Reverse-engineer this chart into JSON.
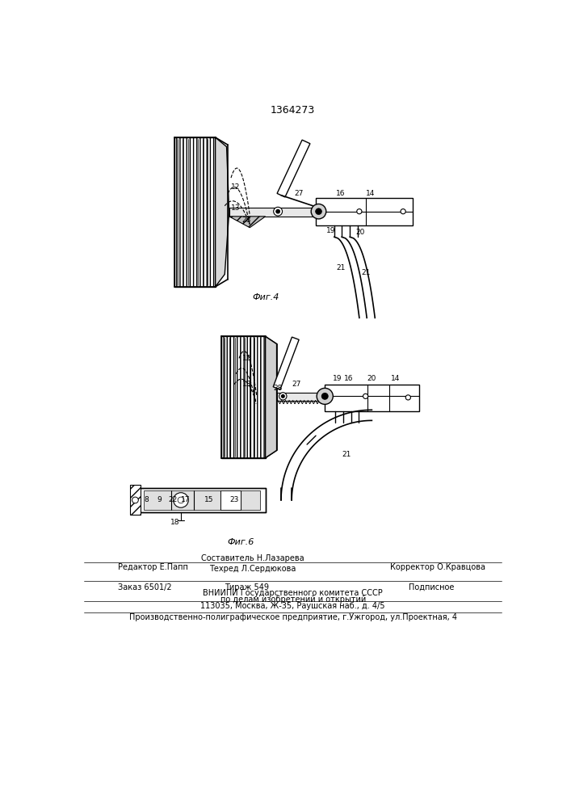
{
  "patent_number": "1364273",
  "fig4_label": "Фиг.4",
  "fig6_label": "Фиг.6",
  "footer_line1_left": "Редактор Е.Папп",
  "footer_line1_center_top": "Составитель Н.Лазарева",
  "footer_line1_center_bot": "Техред Л.Сердюкова",
  "footer_line1_right": "Корректор О.Кравцова",
  "footer_line2_left": "Заказ 6501/2",
  "footer_line2_center": "Тираж 549",
  "footer_line2_right": "Подписное",
  "footer_vnipi1": "ВНИИПИ Государственного комитета СССР",
  "footer_vnipi2": "по делам изобретений и открытий",
  "footer_vnipi3": "113035, Москва, Ж-35, Раушская наб., д. 4/5",
  "footer_production": "Производственно-полиграфическое предприятие, г.Ужгород, ул.Проектная, 4",
  "bg_color": "#ffffff"
}
